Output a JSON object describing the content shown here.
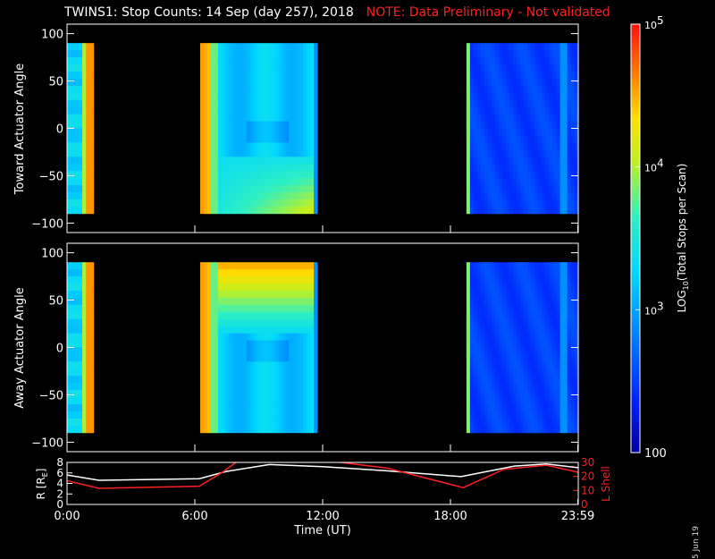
{
  "title": {
    "main": "TWINS1: Stop Counts: 14 Sep (day 257), 2018",
    "note": "NOTE: Data Preliminary - Not validated",
    "note_color": "#ff2020"
  },
  "date_stamp": "5 Jun 19",
  "chart_data": [
    {
      "type": "heatmap",
      "ylabel": "Toward Actuator Angle",
      "xlim": [
        0,
        24
      ],
      "ylim": [
        -110,
        110
      ],
      "yticks": [
        100,
        50,
        0,
        -50,
        -100
      ],
      "angle_range": [
        -90,
        90
      ],
      "data_blocks": [
        {
          "start": 0.0,
          "end": 1.25,
          "profile": "edge-hot"
        },
        {
          "start": 6.25,
          "end": 11.75,
          "profile": "mixed"
        },
        {
          "start": 18.75,
          "end": 23.99,
          "profile": "low"
        }
      ]
    },
    {
      "type": "heatmap",
      "ylabel": "Away Actuator Angle",
      "xlim": [
        0,
        24
      ],
      "ylim": [
        -110,
        110
      ],
      "yticks": [
        100,
        50,
        0,
        -50,
        -100
      ],
      "angle_range": [
        -90,
        90
      ],
      "data_blocks": [
        {
          "start": 0.0,
          "end": 1.25,
          "profile": "edge-hot"
        },
        {
          "start": 6.25,
          "end": 11.75,
          "profile": "mixed-top"
        },
        {
          "start": 18.75,
          "end": 23.99,
          "profile": "low"
        }
      ]
    },
    {
      "type": "line",
      "xlabel": "Time (UT)",
      "xticks": [
        "0:00",
        "6:00",
        "12:00",
        "18:00",
        "23:59"
      ],
      "xtick_values": [
        0,
        6,
        12,
        18,
        23.98
      ],
      "ylabel_left": "R [R",
      "ylabel_left_sub": "E",
      "ylabel_left_close": "]",
      "ylabel_right": "L Shell",
      "ylim_left": [
        0,
        8
      ],
      "ylim_right": [
        0,
        30
      ],
      "yticks_left": [
        0,
        2,
        4,
        6,
        8
      ],
      "yticks_right": [
        0,
        10,
        20,
        30
      ],
      "series": [
        {
          "name": "R",
          "color": "#ffffff",
          "axis": "left",
          "x": [
            0,
            1.5,
            6.2,
            7.5,
            9.5,
            12,
            15,
            18.5,
            21,
            22.5,
            24
          ],
          "y": [
            5.6,
            4.6,
            4.9,
            6.3,
            7.6,
            7.2,
            6.4,
            5.3,
            7.3,
            7.7,
            7.0
          ]
        },
        {
          "name": "L Shell",
          "color": "#ff2020",
          "axis": "right",
          "x": [
            0,
            1.5,
            6.2,
            7.3,
            8.1,
            11.8,
            15.0,
            18.6,
            20.5,
            22.5,
            24
          ],
          "y": [
            17,
            11.5,
            13,
            23,
            32,
            32,
            26,
            12,
            25,
            28,
            23
          ]
        }
      ]
    }
  ],
  "colorbar": {
    "label": "LOG",
    "label_sub": "10",
    "label_rest": "(Total Stops per Scan)",
    "ticks": [
      {
        "base": "10",
        "exp": "5",
        "value": 100000
      },
      {
        "base": "10",
        "exp": "4",
        "value": 10000
      },
      {
        "base": "10",
        "exp": "3",
        "value": 1000
      },
      {
        "base": "100",
        "exp": "",
        "value": 100
      }
    ],
    "range": [
      100,
      100000
    ],
    "scale": "log"
  }
}
